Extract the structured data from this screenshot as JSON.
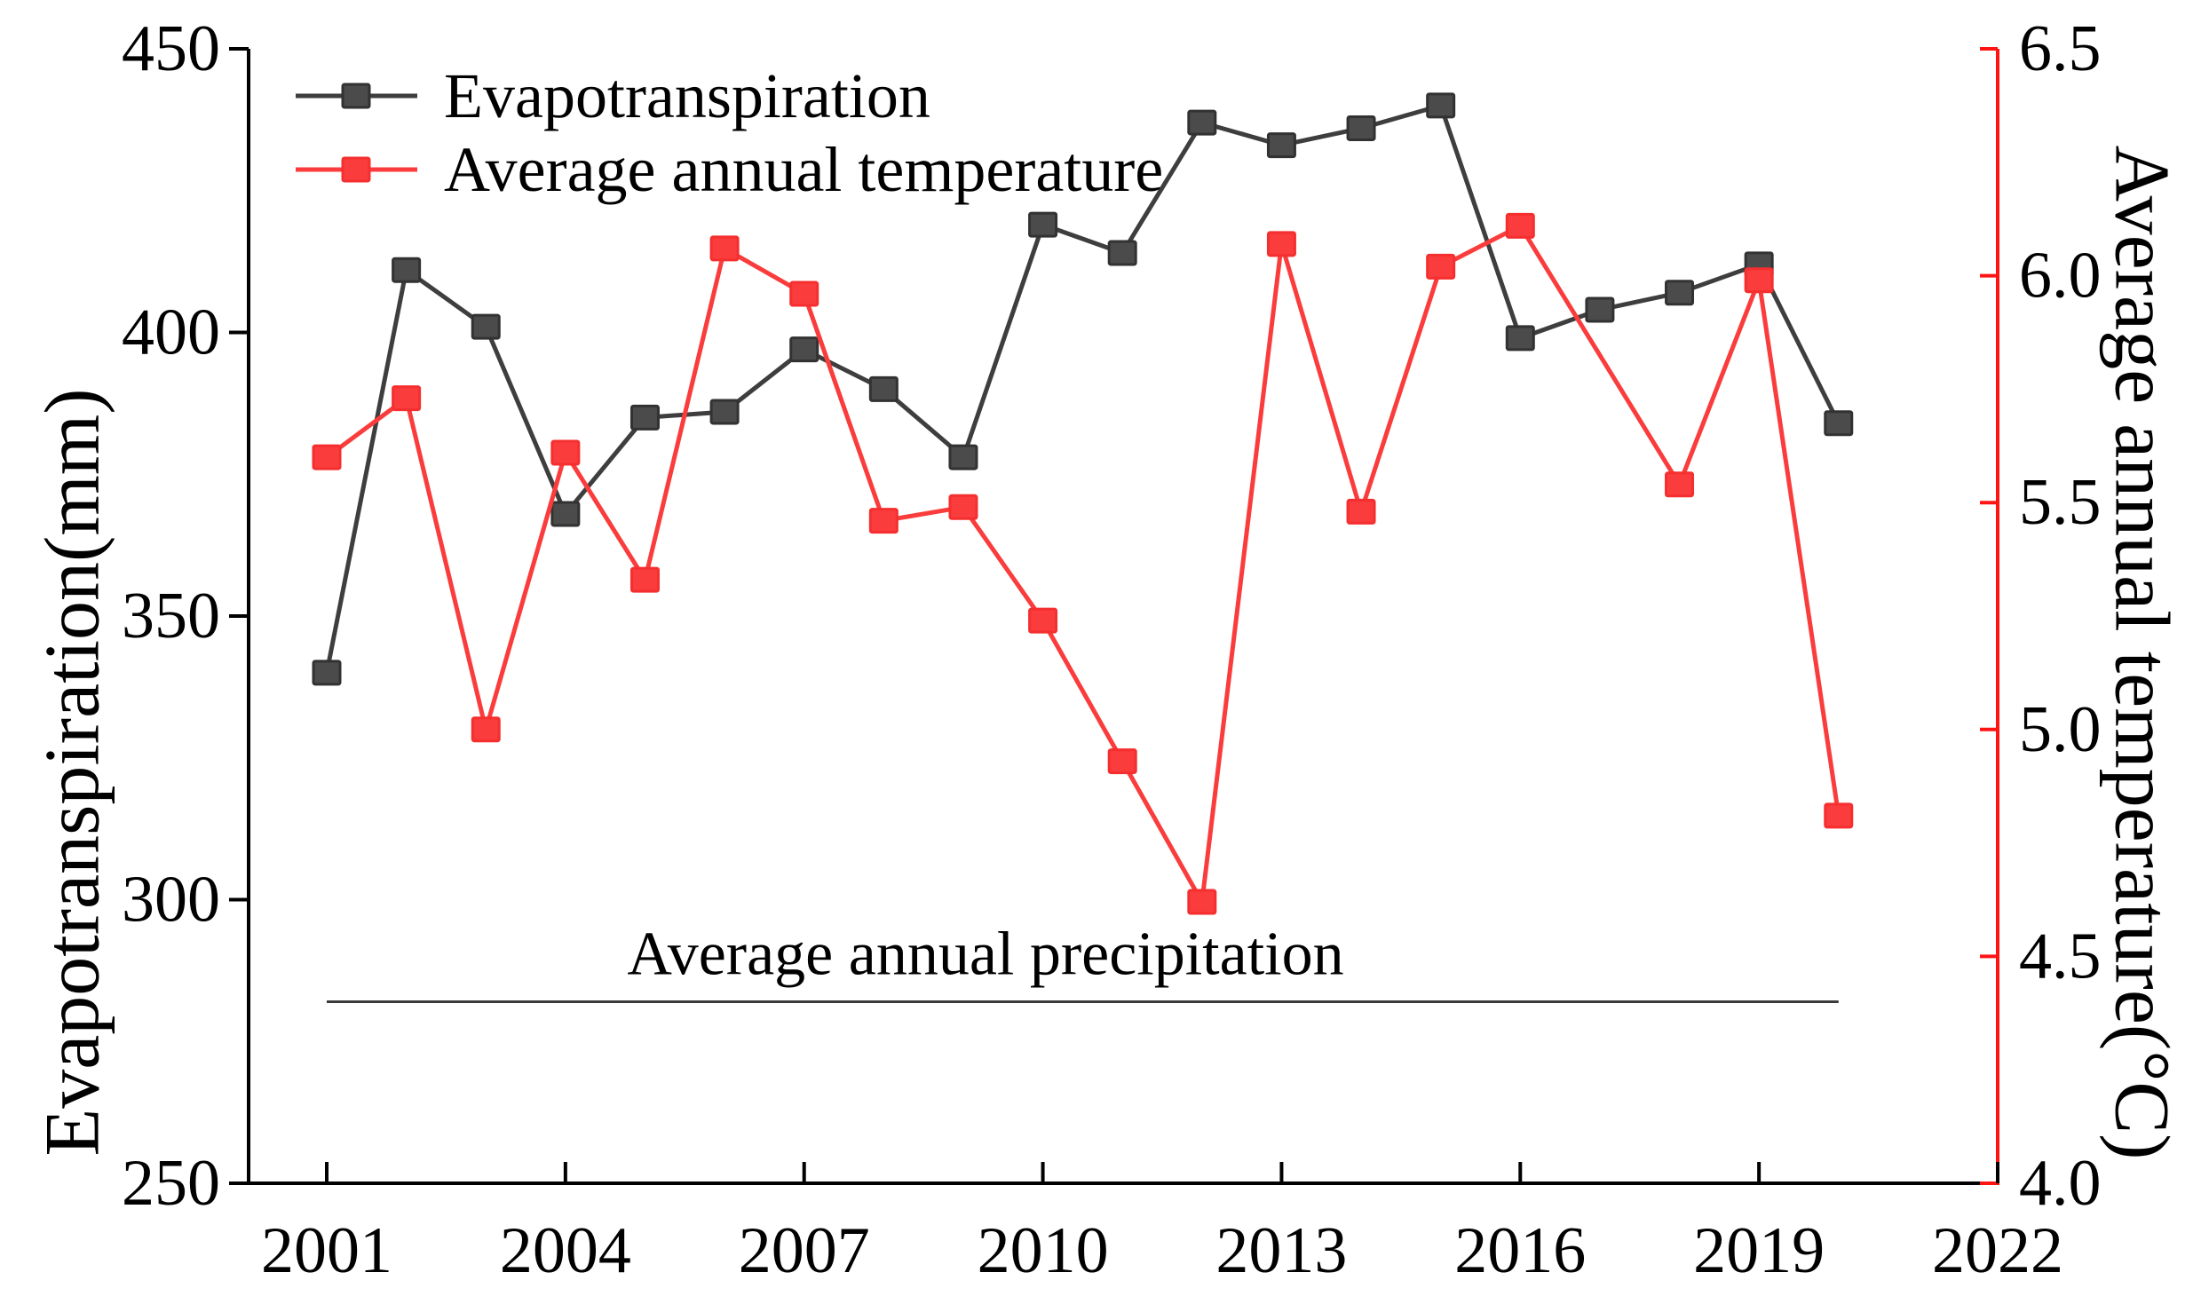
{
  "figure": {
    "background": "#ffffff",
    "colors": {
      "evapotranspiration_line": "#3e3e3e",
      "evapotranspiration_marker": "#4b4b4b",
      "evapotranspiration_marker_border": "#323232",
      "temperature_line": "#fa3c3c",
      "temperature_marker": "#fa3c3c",
      "temperature_marker_border": "#f52f2f",
      "right_axis_red": "#ff1414",
      "black_axis": "#000000",
      "precipitation_line": "#3a3a3a"
    }
  },
  "chart_data": {
    "type": "line",
    "title": "",
    "x": [
      2001,
      2002,
      2003,
      2004,
      2005,
      2006,
      2007,
      2008,
      2009,
      2010,
      2011,
      2012,
      2013,
      2014,
      2015,
      2016,
      2017,
      2018,
      2019,
      2020
    ],
    "series": [
      {
        "name": "Evapotranspiration",
        "axis": "left",
        "unit": "mm",
        "color": "#3e3e3e",
        "marker_color": "#4b4b4b",
        "values": [
          340,
          411,
          401,
          368,
          385,
          386,
          397,
          390,
          378,
          419,
          414,
          437,
          433,
          436,
          440,
          399,
          404,
          407,
          412,
          384
        ]
      },
      {
        "name": "Average annual temperature",
        "axis": "right",
        "unit": "°C",
        "color": "#fa3c3c",
        "marker_color": "#fa3c3c",
        "values": [
          5.6,
          5.73,
          5.0,
          5.61,
          5.33,
          6.06,
          5.96,
          5.46,
          5.49,
          5.24,
          4.93,
          4.62,
          6.07,
          5.48,
          6.02,
          6.11,
          null,
          5.54,
          5.99,
          4.81
        ]
      }
    ],
    "left_axis": {
      "label": "Evapotranspiration(mm)",
      "range": [
        250,
        450
      ],
      "ticks": [
        450,
        400,
        350,
        300,
        250
      ],
      "color": "#000000"
    },
    "right_axis": {
      "label": "Average annual temperature(°C)",
      "range": [
        4.0,
        6.5
      ],
      "ticks": [
        6.5,
        6.0,
        5.5,
        5.0,
        4.5,
        4.0
      ],
      "color": "#ff1414"
    },
    "x_axis": {
      "range": [
        2001,
        2022
      ],
      "ticks": [
        2001,
        2004,
        2007,
        2010,
        2013,
        2016,
        2019,
        2022
      ],
      "color": "#000000"
    },
    "annotation_line": {
      "label": "Average annual precipitation",
      "value_mm": 282,
      "x_start": 2001,
      "x_end": 2020,
      "color": "#3a3a3a"
    },
    "legend": {
      "position": "top-left",
      "items": [
        "Evapotranspiration",
        "Average annual temperature"
      ]
    },
    "grid": false,
    "background": "#ffffff"
  }
}
